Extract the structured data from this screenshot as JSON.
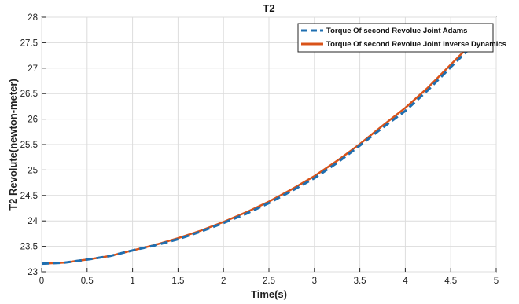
{
  "chart_data": {
    "type": "line",
    "title": "T2",
    "xlabel": "Time(s)",
    "ylabel": "T2 Revolute(newton-meter)",
    "xlim": [
      0,
      5
    ],
    "ylim": [
      23,
      28
    ],
    "xticks": [
      0,
      0.5,
      1,
      1.5,
      2,
      2.5,
      3,
      3.5,
      4,
      4.5,
      5
    ],
    "xtick_labels": [
      "0",
      "0.5",
      "1",
      "1.5",
      "2",
      "2.5",
      "3",
      "3.5",
      "4",
      "4.5",
      "5"
    ],
    "yticks": [
      23,
      23.5,
      24,
      24.5,
      25,
      25.5,
      26,
      26.5,
      27,
      27.5,
      28
    ],
    "ytick_labels": [
      "23",
      "23.5",
      "24",
      "24.5",
      "25",
      "25.5",
      "26",
      "26.5",
      "27",
      "27.5",
      "28"
    ],
    "grid": true,
    "legend_position": "top-right",
    "series": [
      {
        "name": "Torque Of second Revolue Joint Adams",
        "color": "#1f6fb0",
        "style": "dashed",
        "x": [
          0,
          0.25,
          0.5,
          0.75,
          1,
          1.25,
          1.5,
          1.75,
          2,
          2.25,
          2.5,
          2.75,
          3,
          3.25,
          3.5,
          3.75,
          4,
          4.25,
          4.5,
          4.75,
          4.81
        ],
        "y": [
          23.16,
          23.18,
          23.24,
          23.31,
          23.42,
          23.52,
          23.64,
          23.79,
          23.96,
          24.14,
          24.35,
          24.59,
          24.84,
          25.14,
          25.48,
          25.83,
          26.16,
          26.57,
          27.02,
          27.46,
          27.57
        ]
      },
      {
        "name": "Torque Of second Revolue Joint Inverse Dynamics",
        "color": "#d95319",
        "style": "solid",
        "x": [
          0,
          0.25,
          0.5,
          0.75,
          1,
          1.25,
          1.5,
          1.75,
          2,
          2.25,
          2.5,
          2.75,
          3,
          3.25,
          3.5,
          3.75,
          4,
          4.25,
          4.5,
          4.75,
          4.79
        ],
        "y": [
          23.16,
          23.18,
          23.24,
          23.31,
          23.42,
          23.53,
          23.66,
          23.81,
          23.98,
          24.17,
          24.38,
          24.62,
          24.88,
          25.18,
          25.51,
          25.87,
          26.22,
          26.62,
          27.07,
          27.52,
          27.59
        ]
      }
    ]
  }
}
